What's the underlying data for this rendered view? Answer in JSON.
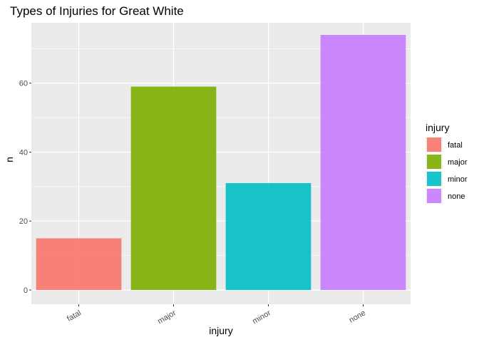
{
  "chart_data": {
    "type": "bar",
    "title": "Types of Injuries for Great White",
    "xlabel": "injury",
    "ylabel": "n",
    "categories": [
      "fatal",
      "major",
      "minor",
      "none"
    ],
    "values": [
      15,
      59,
      31,
      74
    ],
    "colors": [
      "#F8766D",
      "#7CAE00",
      "#00BFC4",
      "#C77CFF"
    ],
    "ylim": [
      0,
      78
    ],
    "yticks": [
      0,
      20,
      40,
      60
    ],
    "grid": true,
    "panel_background": "#EBEBEB",
    "bar_opacity": 0.9,
    "legend": {
      "title": "injury",
      "position": "right",
      "entries": [
        "fatal",
        "major",
        "minor",
        "none"
      ]
    }
  }
}
